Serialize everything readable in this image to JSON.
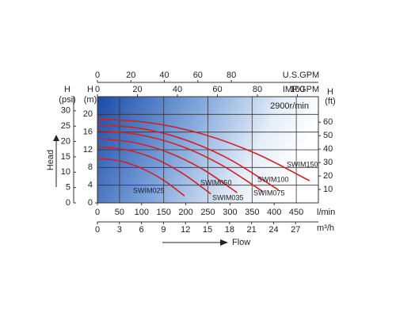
{
  "chart_data": {
    "type": "line",
    "speed_note": "2900r/min",
    "y_axis_title": "Head",
    "x_axis_title": "Flow",
    "x_unit": "l/min",
    "xlim": [
      0,
      500
    ],
    "xticks": [
      0,
      50,
      100,
      150,
      200,
      250,
      300,
      350,
      400,
      450
    ],
    "y_symbol": "H",
    "y_unit": "(m)",
    "ylim": [
      0,
      24
    ],
    "yticks": [
      0,
      4,
      8,
      12,
      16,
      20
    ],
    "grid": true,
    "extra_axes": [
      {
        "side": "left",
        "symbol": "H",
        "unit": "(psi)",
        "lim": [
          0,
          34.6
        ],
        "ticks": [
          0,
          5,
          10,
          15,
          20,
          25,
          30
        ]
      },
      {
        "side": "right",
        "symbol": "H",
        "unit": "(ft)",
        "lim": [
          0,
          79
        ],
        "ticks": [
          10,
          20,
          30,
          40,
          50,
          60
        ]
      },
      {
        "side": "top",
        "unit": "U.S.GPM",
        "lim": [
          0,
          132
        ],
        "ticks": [
          0,
          20,
          40,
          60,
          80
        ]
      },
      {
        "side": "top",
        "unit": "IMP.GPM",
        "lim": [
          0,
          110.5
        ],
        "ticks": [
          0,
          20,
          40,
          60,
          80,
          100
        ]
      },
      {
        "side": "bottom",
        "unit": "m³/h",
        "lim": [
          0,
          30.1
        ],
        "ticks": [
          0,
          3,
          6,
          9,
          12,
          15,
          18,
          21,
          24,
          27
        ]
      }
    ],
    "series": [
      {
        "name": "SWIM150",
        "color": "#d42020",
        "x": [
          0,
          120,
          240,
          360,
          480
        ],
        "values": [
          19,
          18.1,
          15.5,
          11.1,
          5
        ]
      },
      {
        "name": "SWIM100",
        "color": "#d42020",
        "x": [
          0,
          100,
          200,
          300,
          410
        ],
        "values": [
          17.7,
          16.8,
          14.2,
          9.8,
          2.9
        ]
      },
      {
        "name": "SWIM075",
        "color": "#d42020",
        "x": [
          0,
          95,
          190,
          280,
          375
        ],
        "values": [
          16.3,
          15.4,
          12.8,
          8.6,
          2.5
        ]
      },
      {
        "name": "SWIM050",
        "color": "#d42020",
        "x": [
          0,
          80,
          160,
          240,
          316
        ],
        "values": [
          14.5,
          13.7,
          11.4,
          7.5,
          2.3
        ]
      },
      {
        "name": "SWIM035",
        "color": "#d42020",
        "x": [
          0,
          65,
          130,
          195,
          257
        ],
        "values": [
          12.7,
          12.0,
          10.0,
          6.5,
          2.0
        ]
      },
      {
        "name": "SWIM025",
        "color": "#d42020",
        "x": [
          0,
          50,
          100,
          150,
          197
        ],
        "values": [
          10,
          9.5,
          7.8,
          5.1,
          1.6
        ]
      }
    ]
  }
}
